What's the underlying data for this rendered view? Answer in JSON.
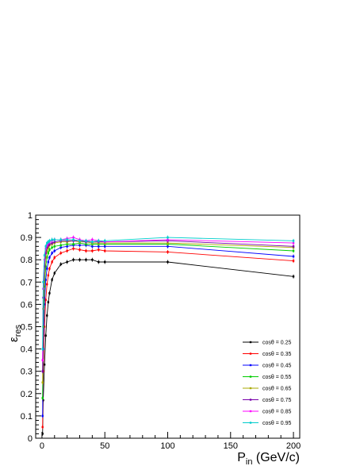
{
  "chart_data": {
    "type": "line",
    "xlabel": {
      "main": "P",
      "sub": "in",
      "unit": " (GeV/c)"
    },
    "ylabel": {
      "main": "ε",
      "sub": "res"
    },
    "xlim": [
      -5,
      205
    ],
    "ylim": [
      0,
      1
    ],
    "x_ticks": [
      0,
      50,
      100,
      150,
      200
    ],
    "y_ticks": [
      0,
      0.1,
      0.2,
      0.3,
      0.4,
      0.5,
      0.6,
      0.7,
      0.8,
      0.9,
      1
    ],
    "y_tick_labels": [
      "0",
      "0.1",
      "0.2",
      "0.3",
      "0.4",
      "0.5",
      "0.6",
      "0.7",
      "0.8",
      "0.9",
      "1"
    ],
    "x_tick_labels": [
      "0",
      "50",
      "100",
      "150",
      "200"
    ],
    "legend_position": "bottom-right",
    "grid": false,
    "x": [
      0.5,
      1,
      2,
      3,
      4,
      5,
      6,
      8,
      10,
      15,
      20,
      25,
      30,
      35,
      40,
      45,
      50,
      100,
      200
    ],
    "series": [
      {
        "name": "cosθ = 0.25",
        "color": "#000000",
        "values": [
          0.02,
          0.17,
          0.33,
          0.46,
          0.55,
          0.61,
          0.65,
          0.71,
          0.74,
          0.78,
          0.79,
          0.8,
          0.8,
          0.8,
          0.8,
          0.79,
          0.79,
          0.79,
          0.725
        ]
      },
      {
        "name": "cosθ = 0.35",
        "color": "#ff0000",
        "values": [
          0.05,
          0.3,
          0.5,
          0.62,
          0.69,
          0.73,
          0.76,
          0.79,
          0.81,
          0.83,
          0.84,
          0.85,
          0.845,
          0.84,
          0.84,
          0.845,
          0.84,
          0.835,
          0.795
        ]
      },
      {
        "name": "cosθ = 0.45",
        "color": "#0000ff",
        "values": [
          0.1,
          0.4,
          0.6,
          0.71,
          0.76,
          0.79,
          0.81,
          0.83,
          0.84,
          0.855,
          0.86,
          0.865,
          0.865,
          0.865,
          0.86,
          0.86,
          0.86,
          0.86,
          0.815
        ]
      },
      {
        "name": "cosθ = 0.55",
        "color": "#00cc00",
        "values": [
          0.18,
          0.5,
          0.68,
          0.77,
          0.81,
          0.83,
          0.845,
          0.855,
          0.86,
          0.865,
          0.87,
          0.87,
          0.875,
          0.87,
          0.87,
          0.87,
          0.87,
          0.87,
          0.84
        ]
      },
      {
        "name": "cosθ = 0.65",
        "color": "#aaaa00",
        "values": [
          0.25,
          0.58,
          0.74,
          0.81,
          0.84,
          0.855,
          0.865,
          0.87,
          0.875,
          0.88,
          0.88,
          0.885,
          0.88,
          0.88,
          0.875,
          0.875,
          0.875,
          0.875,
          0.855
        ]
      },
      {
        "name": "cosθ = 0.75",
        "color": "#7700aa",
        "values": [
          0.3,
          0.63,
          0.77,
          0.83,
          0.855,
          0.865,
          0.87,
          0.875,
          0.88,
          0.885,
          0.885,
          0.885,
          0.885,
          0.88,
          0.88,
          0.88,
          0.88,
          0.885,
          0.86
        ]
      },
      {
        "name": "cosθ = 0.85",
        "color": "#ff00ff",
        "values": [
          0.35,
          0.67,
          0.8,
          0.85,
          0.865,
          0.875,
          0.88,
          0.885,
          0.89,
          0.89,
          0.895,
          0.9,
          0.89,
          0.885,
          0.89,
          0.885,
          0.88,
          0.89,
          0.875
        ]
      },
      {
        "name": "cosθ = 0.95",
        "color": "#00cccc",
        "values": [
          0.4,
          0.7,
          0.82,
          0.86,
          0.875,
          0.88,
          0.885,
          0.89,
          0.89,
          0.89,
          0.89,
          0.89,
          0.885,
          0.885,
          0.88,
          0.885,
          0.885,
          0.9,
          0.885
        ]
      }
    ]
  }
}
